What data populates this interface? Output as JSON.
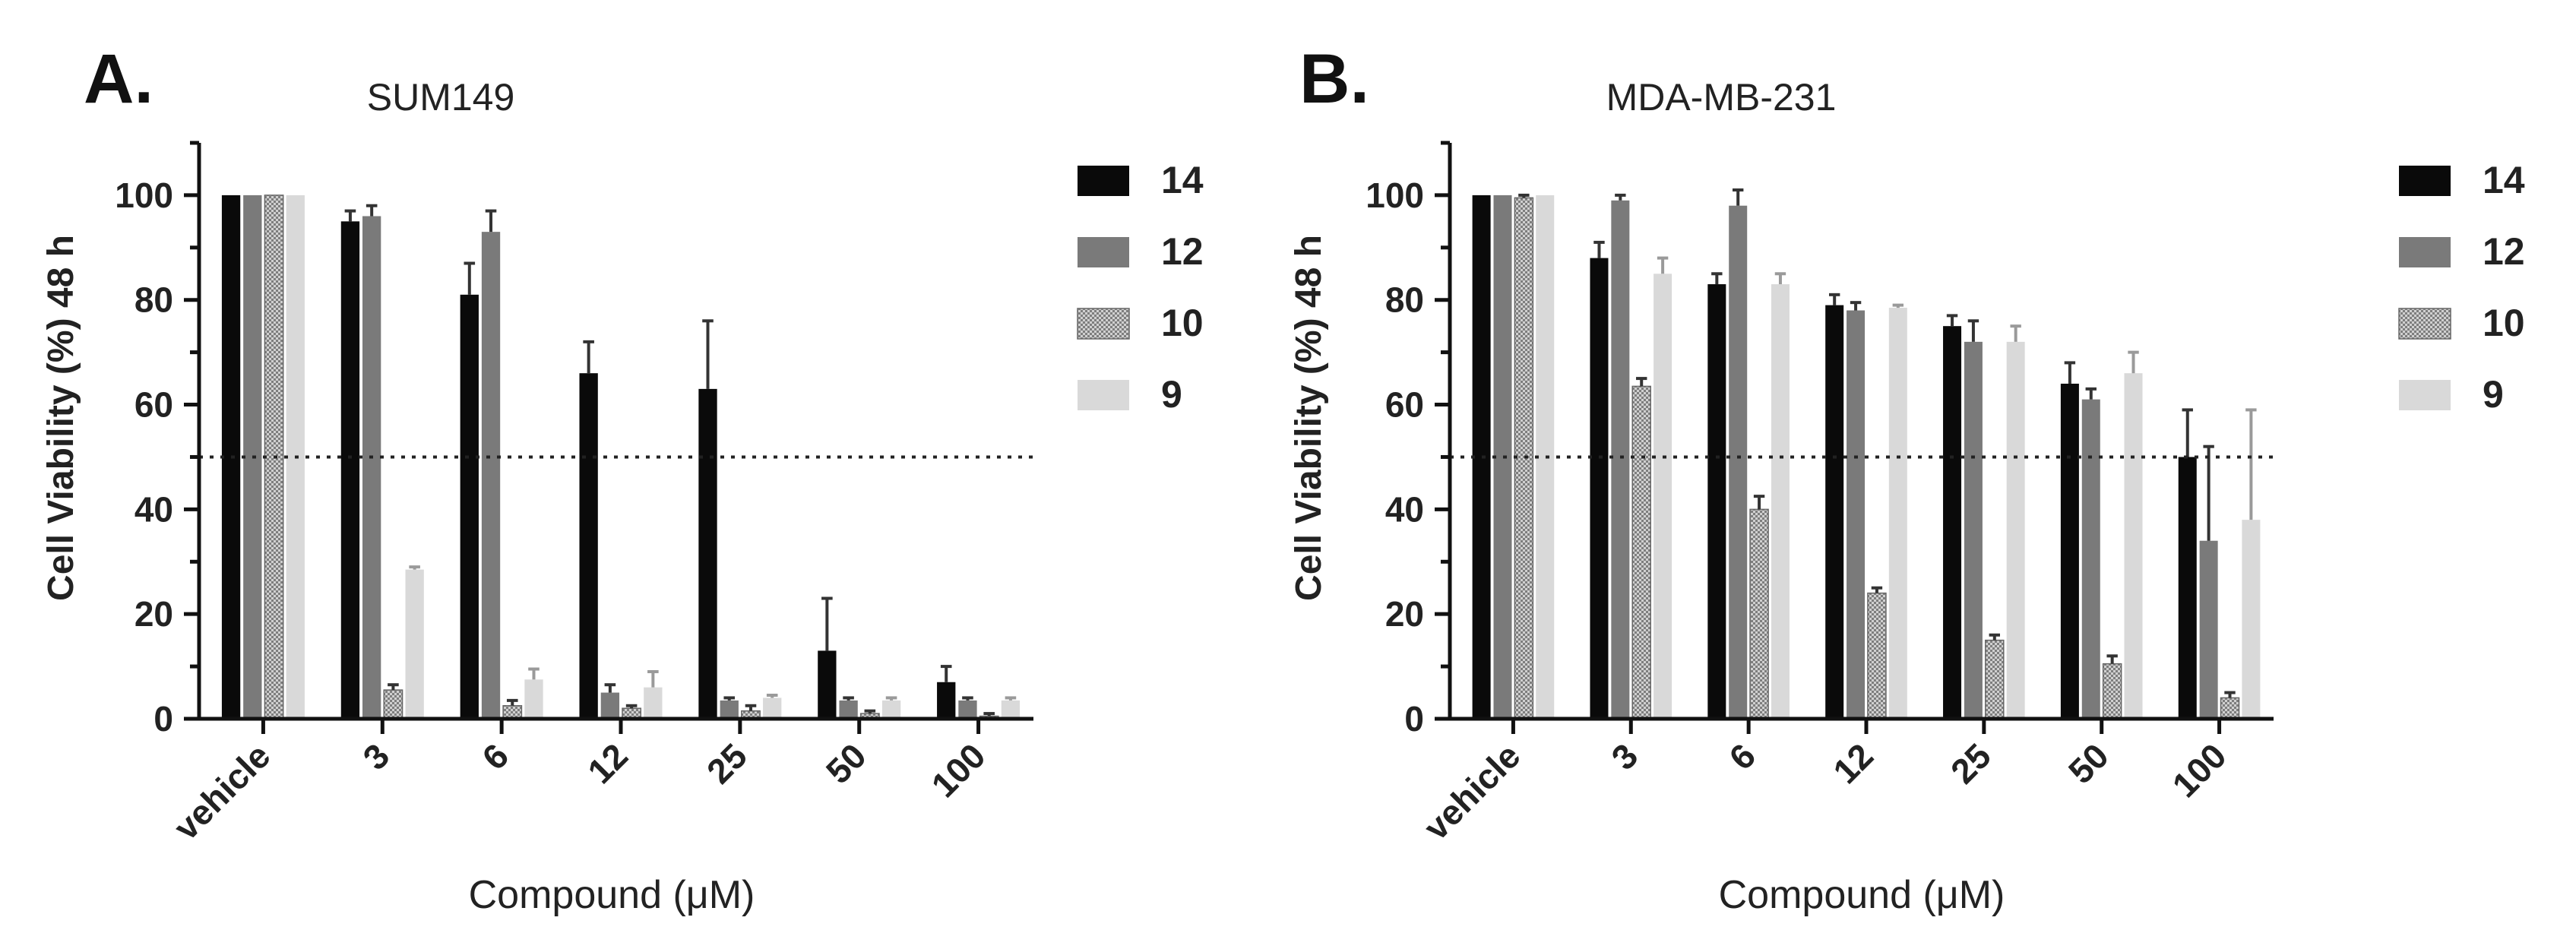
{
  "colors": {
    "14": "#0a0a0a",
    "12": "#7a7a7a",
    "10": "#b4b4b4",
    "9": "#d9d9d9",
    "axis": "#111111",
    "text": "#222222"
  },
  "legend_labels": [
    "14",
    "12",
    "10",
    "9"
  ],
  "chart_data": [
    {
      "type": "bar",
      "panel_label": "A.",
      "title": "SUM149",
      "xlabel": "Compound (μM)",
      "ylabel": "Cell Viability (%) 48 h",
      "ylim": [
        0,
        110
      ],
      "yticks": [
        0,
        20,
        40,
        60,
        80,
        100
      ],
      "threshold": 50,
      "categories": [
        "vehicle",
        "3",
        "6",
        "12",
        "25",
        "50",
        "100"
      ],
      "series": [
        {
          "name": "14",
          "values": [
            100,
            95,
            81,
            66,
            63,
            13,
            7
          ],
          "errors": [
            0,
            2,
            6,
            6,
            13,
            10,
            3
          ]
        },
        {
          "name": "12",
          "values": [
            100,
            96,
            93,
            5,
            3.5,
            3.5,
            3.5
          ],
          "errors": [
            0,
            2,
            4,
            1.5,
            0.5,
            0.5,
            0.5
          ]
        },
        {
          "name": "10",
          "values": [
            100,
            5.5,
            2.5,
            2,
            1.5,
            1,
            0.5
          ],
          "errors": [
            0,
            1,
            1,
            0.5,
            1,
            0.5,
            0.5
          ]
        },
        {
          "name": "9",
          "values": [
            100,
            28.5,
            7.5,
            6,
            4,
            3.5,
            3.5
          ],
          "errors": [
            0,
            0.5,
            2,
            3,
            0.5,
            0.5,
            0.5
          ]
        }
      ]
    },
    {
      "type": "bar",
      "panel_label": "B.",
      "title": "MDA-MB-231",
      "xlabel": "Compound (μM)",
      "ylabel": "Cell Viability (%) 48 h",
      "ylim": [
        0,
        110
      ],
      "yticks": [
        0,
        20,
        40,
        60,
        80,
        100
      ],
      "threshold": 50,
      "categories": [
        "vehicle",
        "3",
        "6",
        "12",
        "25",
        "50",
        "100"
      ],
      "series": [
        {
          "name": "14",
          "values": [
            100,
            88,
            83,
            79,
            75,
            64,
            50
          ],
          "errors": [
            0,
            3,
            2,
            2,
            2,
            4,
            9
          ]
        },
        {
          "name": "12",
          "values": [
            100,
            99,
            98,
            78,
            72,
            61,
            34
          ],
          "errors": [
            0,
            1,
            3,
            1.5,
            4,
            2,
            18
          ]
        },
        {
          "name": "10",
          "values": [
            99.5,
            63.5,
            40,
            24,
            15,
            10.5,
            4
          ],
          "errors": [
            0.5,
            1.5,
            2.5,
            1,
            1,
            1.5,
            1
          ]
        },
        {
          "name": "9",
          "values": [
            100,
            85,
            83,
            78.5,
            72,
            66,
            38
          ],
          "errors": [
            0,
            3,
            2,
            0.5,
            3,
            4,
            21
          ]
        }
      ]
    }
  ]
}
